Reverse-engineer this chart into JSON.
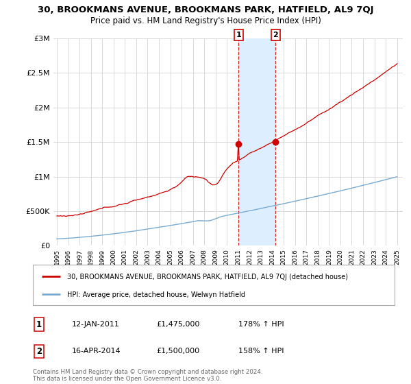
{
  "title_line1": "30, BROOKMANS AVENUE, BROOKMANS PARK, HATFIELD, AL9 7QJ",
  "title_line2": "Price paid vs. HM Land Registry's House Price Index (HPI)",
  "ylim": [
    0,
    3000000
  ],
  "yticks": [
    0,
    500000,
    1000000,
    1500000,
    2000000,
    2500000,
    3000000
  ],
  "ytick_labels": [
    "£0",
    "£500K",
    "£1M",
    "£1.5M",
    "£2M",
    "£2.5M",
    "£3M"
  ],
  "hpi_color": "#7aaad0",
  "price_color": "#cc0000",
  "transaction1_date": 2011.03,
  "transaction1_value": 1475000,
  "transaction1_label": "1",
  "transaction2_date": 2014.29,
  "transaction2_value": 1500000,
  "transaction2_label": "2",
  "legend_price_label": "30, BROOKMANS AVENUE, BROOKMANS PARK, HATFIELD, AL9 7QJ (detached house)",
  "legend_hpi_label": "HPI: Average price, detached house, Welwyn Hatfield",
  "info1_label": "1",
  "info1_date": "12-JAN-2011",
  "info1_price": "£1,475,000",
  "info1_hpi": "178% ↑ HPI",
  "info2_label": "2",
  "info2_date": "16-APR-2014",
  "info2_price": "£1,500,000",
  "info2_hpi": "158% ↑ HPI",
  "footnote": "Contains HM Land Registry data © Crown copyright and database right 2024.\nThis data is licensed under the Open Government Licence v3.0.",
  "background_color": "#ffffff",
  "grid_color": "#cccccc",
  "shade_color": "#ddeeff",
  "dashed_color": "#cc0000"
}
